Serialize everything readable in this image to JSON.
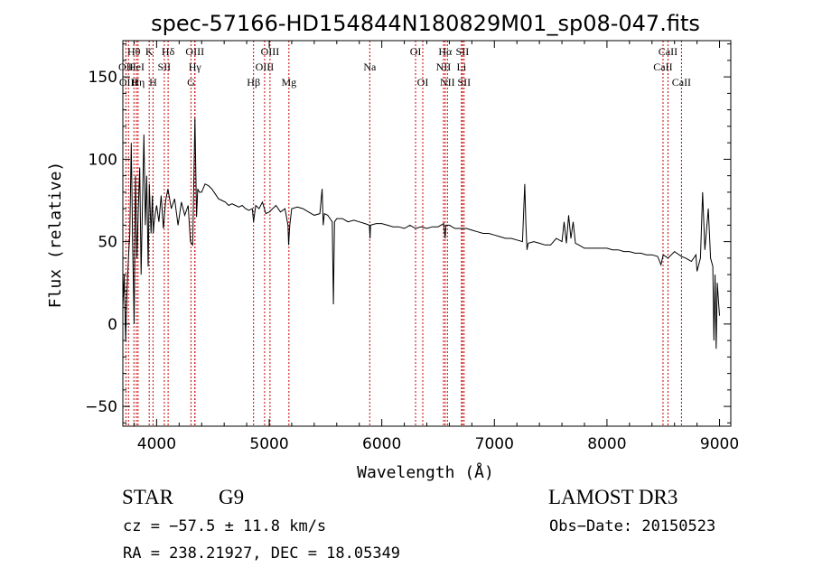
{
  "chart_data": {
    "type": "line",
    "title": "spec-57166-HD154844N180829M01_sp08-047.fits",
    "xlabel": "Wavelength (Å)",
    "ylabel": "Flux (relative)",
    "xlim": [
      3700,
      9100
    ],
    "ylim": [
      -62,
      172
    ],
    "x_ticks": [
      4000,
      5000,
      6000,
      7000,
      8000,
      9000
    ],
    "x_tick_labels": [
      "4000",
      "5000",
      "6000",
      "7000",
      "8000",
      "9000"
    ],
    "y_ticks": [
      -50,
      0,
      50,
      100,
      150
    ],
    "y_tick_labels": [
      "−50",
      "0",
      "50",
      "100",
      "150"
    ],
    "grid": false,
    "series": [
      {
        "x": [
          3700,
          3712,
          3725,
          3737,
          3750,
          3762,
          3775,
          3787,
          3800,
          3812,
          3825,
          3837,
          3850,
          3862,
          3875,
          3887,
          3900,
          3912,
          3925,
          3935,
          3950,
          3962,
          3970,
          3975,
          3990,
          4000,
          4020,
          4040,
          4060,
          4080,
          4100,
          4130,
          4160,
          4190,
          4220,
          4250,
          4280,
          4300,
          4320,
          4340,
          4355,
          4365,
          4380,
          4400,
          4430,
          4460,
          4490,
          4520,
          4550,
          4580,
          4610,
          4640,
          4670,
          4700,
          4730,
          4760,
          4790,
          4820,
          4850,
          4861,
          4880,
          4910,
          4940,
          4970,
          5000,
          5030,
          5060,
          5100,
          5140,
          5167,
          5172,
          5183,
          5200,
          5250,
          5300,
          5350,
          5400,
          5450,
          5470,
          5480,
          5490,
          5520,
          5560,
          5570,
          5580,
          5600,
          5650,
          5700,
          5750,
          5800,
          5850,
          5890,
          5896,
          5900,
          5950,
          6000,
          6050,
          6100,
          6150,
          6200,
          6250,
          6300,
          6350,
          6400,
          6450,
          6500,
          6550,
          6563,
          6570,
          6600,
          6650,
          6700,
          6750,
          6800,
          6850,
          6900,
          6950,
          7000,
          7050,
          7100,
          7150,
          7200,
          7250,
          7270,
          7280,
          7290,
          7300,
          7350,
          7400,
          7450,
          7500,
          7550,
          7600,
          7620,
          7640,
          7660,
          7680,
          7700,
          7720,
          7750,
          7800,
          7850,
          7900,
          7950,
          8000,
          8050,
          8100,
          8150,
          8200,
          8250,
          8300,
          8350,
          8400,
          8450,
          8480,
          8500,
          8542,
          8600,
          8662,
          8700,
          8750,
          8790,
          8800,
          8830,
          8850,
          8870,
          8900,
          8920,
          8940,
          8950,
          8960,
          8970,
          8980,
          9000
        ],
        "y": [
          10,
          30,
          -10,
          20,
          40,
          55,
          110,
          50,
          0,
          90,
          40,
          70,
          95,
          30,
          75,
          115,
          60,
          90,
          35,
          85,
          55,
          78,
          55,
          60,
          68,
          72,
          62,
          78,
          58,
          75,
          82,
          70,
          76,
          60,
          74,
          66,
          72,
          50,
          48,
          125,
          65,
          82,
          80,
          80,
          85,
          84,
          82,
          79,
          76,
          75,
          74,
          72,
          73,
          72,
          71,
          72,
          70,
          69,
          70,
          62,
          72,
          70,
          74,
          67,
          68,
          70,
          72,
          68,
          70,
          60,
          48,
          60,
          70,
          71,
          70,
          68,
          66,
          67,
          82,
          60,
          67,
          66,
          62,
          12,
          62,
          64,
          64,
          62,
          63,
          62,
          61,
          60,
          52,
          60,
          61,
          61,
          60,
          59,
          59,
          58,
          60,
          58,
          59,
          58,
          59,
          59,
          61,
          52,
          60,
          60,
          58,
          58,
          58,
          57,
          56,
          55,
          55,
          54,
          53,
          52,
          52,
          51,
          50,
          85,
          60,
          45,
          49,
          50,
          49,
          48,
          48,
          52,
          50,
          62,
          49,
          66,
          52,
          62,
          49,
          48,
          46,
          46,
          46,
          46,
          46,
          45,
          45,
          44,
          44,
          43,
          43,
          42,
          42,
          41,
          36,
          42,
          40,
          44,
          41,
          40,
          38,
          42,
          32,
          40,
          80,
          45,
          70,
          40,
          35,
          -10,
          30,
          -15,
          25,
          5
        ]
      }
    ],
    "lines": [
      {
        "name": "OII",
        "wavelength": 3727,
        "row": 1
      },
      {
        "name": "OIII",
        "wavelength": 3750,
        "row": 2
      },
      {
        "name": "Hθ",
        "wavelength": 3798,
        "row": 0
      },
      {
        "name": "HeI",
        "wavelength": 3820,
        "row": 1
      },
      {
        "name": "Hη",
        "wavelength": 3835,
        "row": 2
      },
      {
        "name": "K",
        "wavelength": 3934,
        "row": 0
      },
      {
        "name": "SII",
        "wavelength": 4068,
        "row": 1
      },
      {
        "name": "H",
        "wavelength": 3968,
        "row": 2
      },
      {
        "name": "Hδ",
        "wavelength": 4102,
        "row": 0
      },
      {
        "name": "OIII",
        "wavelength": 4340,
        "row": 0
      },
      {
        "name": "Hγ",
        "wavelength": 4340,
        "row": 1
      },
      {
        "name": "G",
        "wavelength": 4305,
        "row": 2
      },
      {
        "name": "Hβ",
        "wavelength": 4861,
        "row": 2
      },
      {
        "name": "OIII",
        "wavelength": 5007,
        "row": 0
      },
      {
        "name": "OIII",
        "wavelength": 4959,
        "row": 1
      },
      {
        "name": "Mg",
        "wavelength": 5175,
        "row": 2
      },
      {
        "name": "Na",
        "wavelength": 5893,
        "row": 1
      },
      {
        "name": "OI",
        "wavelength": 6300,
        "row": 0
      },
      {
        "name": "OI",
        "wavelength": 6364,
        "row": 2
      },
      {
        "name": "Hα",
        "wavelength": 6563,
        "row": 0
      },
      {
        "name": "NII",
        "wavelength": 6548,
        "row": 1
      },
      {
        "name": "NII",
        "wavelength": 6583,
        "row": 2
      },
      {
        "name": "SII",
        "wavelength": 6716,
        "row": 0
      },
      {
        "name": "Li",
        "wavelength": 6708,
        "row": 1
      },
      {
        "name": "SII",
        "wavelength": 6731,
        "row": 2
      },
      {
        "name": "CaII",
        "wavelength": 8542,
        "row": 0
      },
      {
        "name": "CaII",
        "wavelength": 8498,
        "row": 1
      },
      {
        "name": "CaII",
        "wavelength": 8662,
        "row": 2
      }
    ]
  },
  "info": {
    "class": "STAR",
    "subclass": "G9",
    "survey": "LAMOST DR3",
    "cz": "cz = −57.5 ± 11.8 km/s",
    "obs_date": "Obs−Date: 20150523",
    "radec": "RA = 238.21927, DEC =  18.05349"
  },
  "colors": {
    "spectrum": "#000000",
    "line_markers": "#cc0000",
    "axes": "#000000"
  }
}
